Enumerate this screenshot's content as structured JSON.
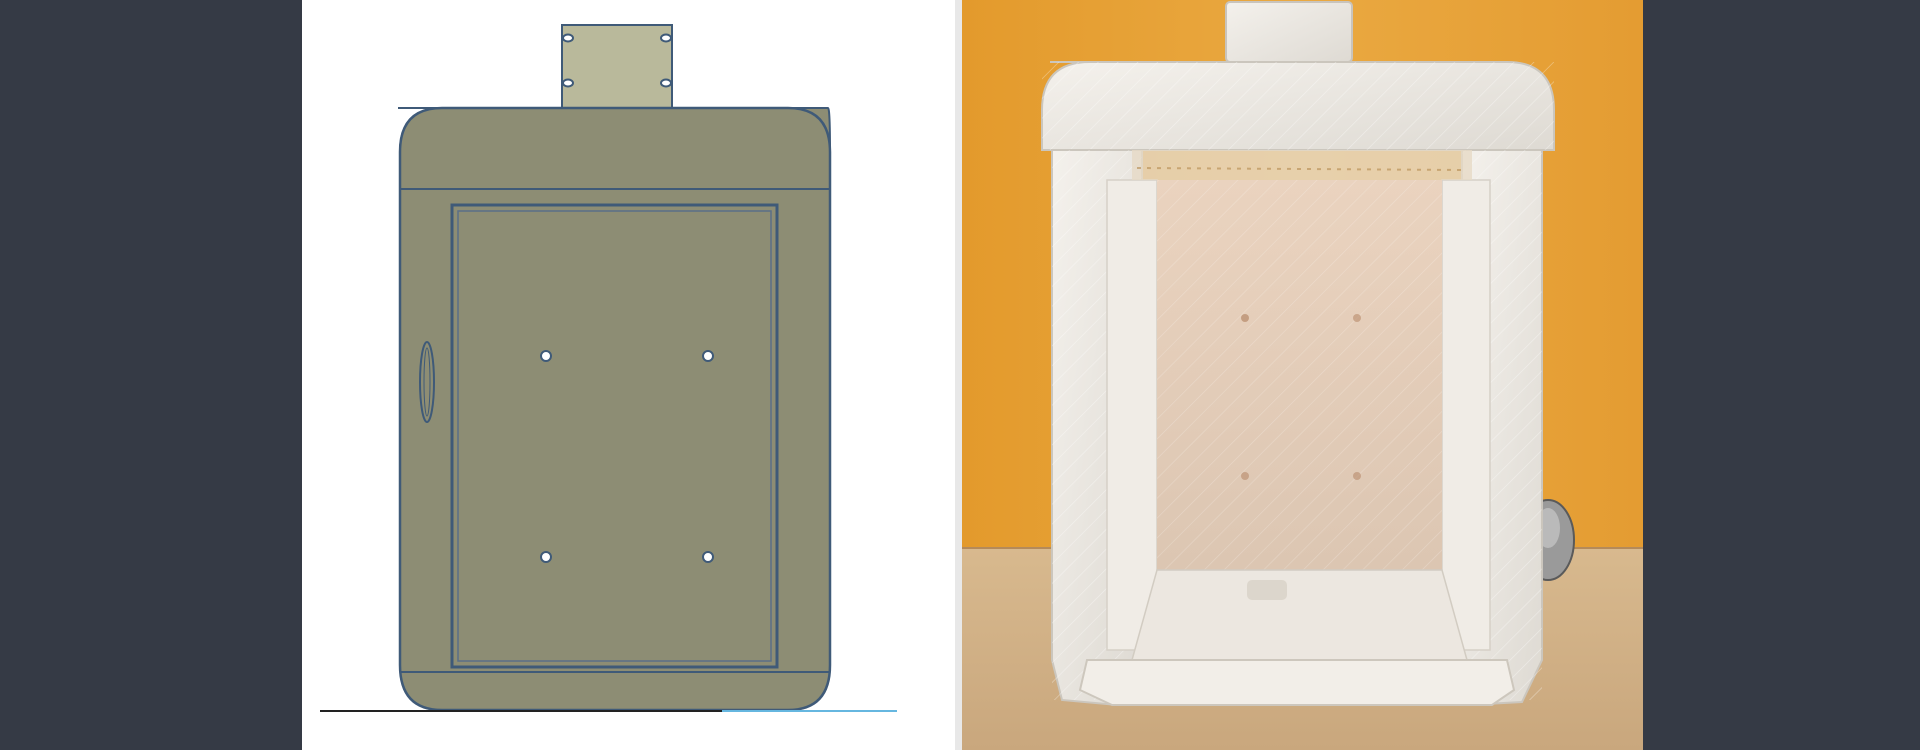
{
  "images": {
    "cad_drawing": {
      "icon": "cad-enclosure-drawing",
      "colors": {
        "panel_background": "#ffffff",
        "body_fill": "#8d8d74",
        "outline": "#3f5a78",
        "tab_fill": "#b9b99b",
        "ground_line": "#222222",
        "accent_line": "#66b7e0"
      }
    },
    "photo": {
      "icon": "3d-printed-transparent-enclosure-photo",
      "colors": {
        "wall_orange": "#e7a23a",
        "shelf_wood": "#d2b48c",
        "plastic_white": "#eeeae4",
        "interior_back": "#e8d2c0"
      }
    }
  },
  "page": {
    "background": "#353a45"
  }
}
